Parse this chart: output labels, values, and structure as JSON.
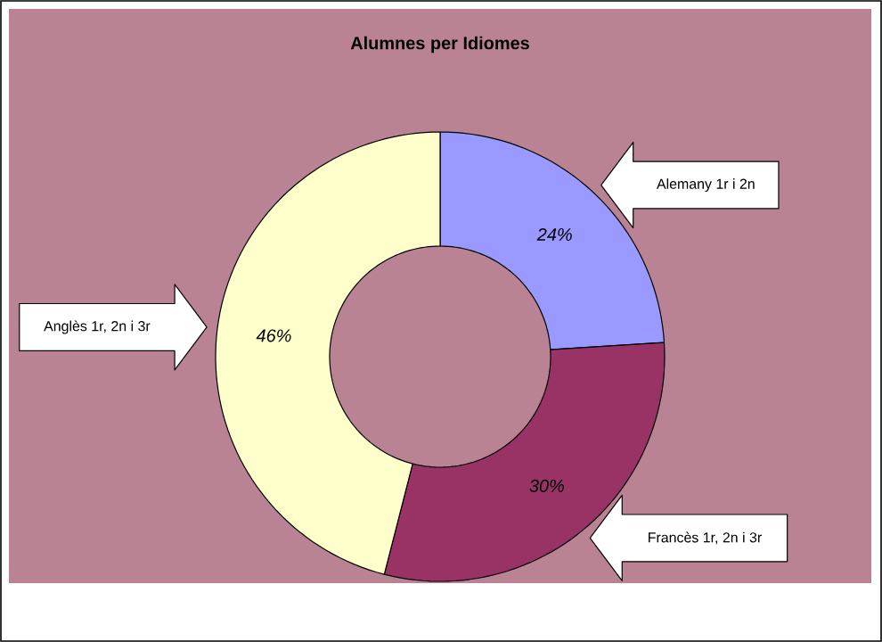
{
  "chart_data": {
    "type": "donut",
    "title": "Alumnes per Idiomes",
    "categories": [
      "Alemany 1r i 2n",
      "Francès 1r, 2n i 3r",
      "Anglès 1r, 2n i 3r"
    ],
    "values": [
      24,
      30,
      46
    ],
    "colors": [
      "#9999ff",
      "#993366",
      "#ffffcc"
    ],
    "value_labels": [
      "24%",
      "30%",
      "46%"
    ]
  }
}
